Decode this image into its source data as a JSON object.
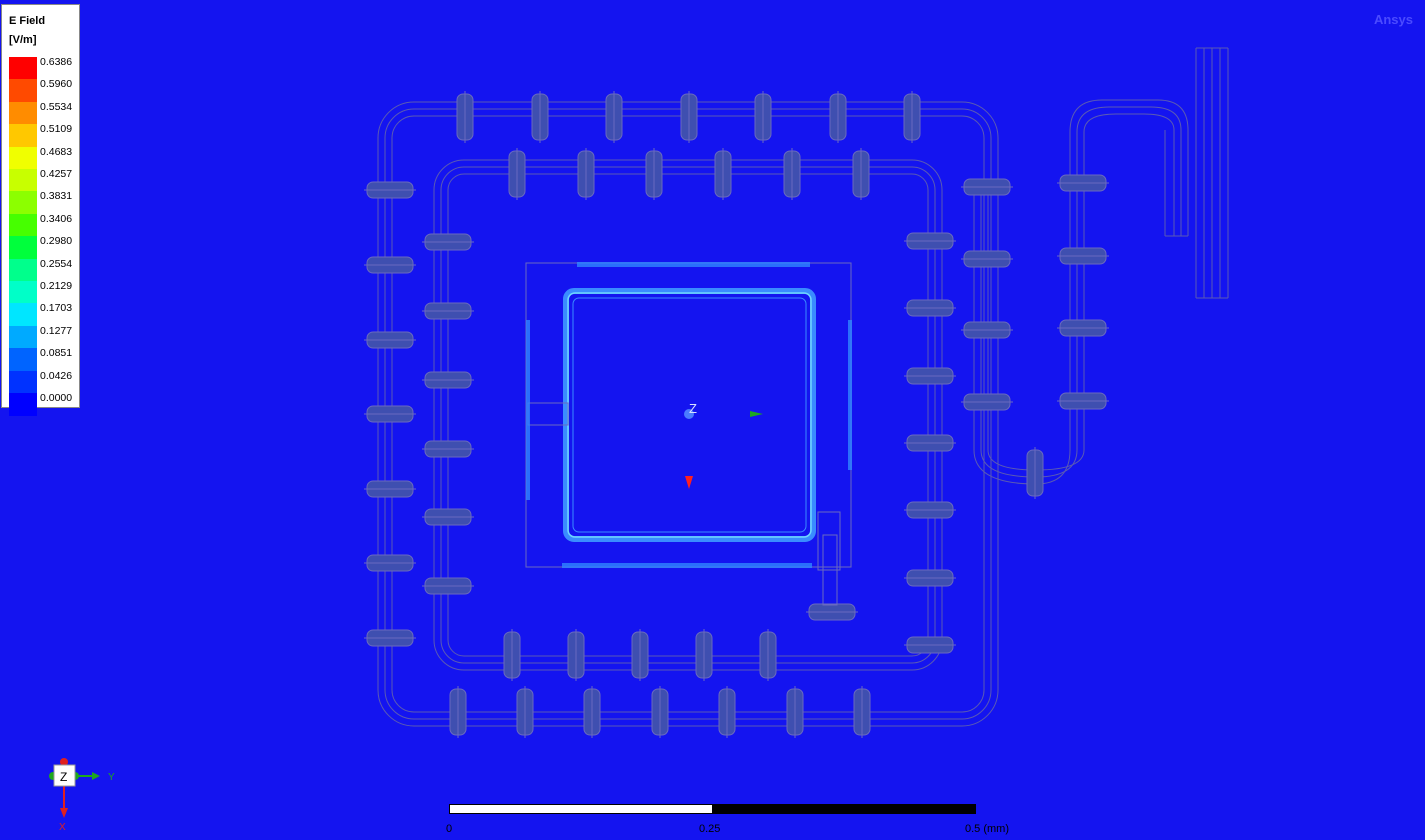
{
  "brand": "Ansys",
  "legend": {
    "title": "E Field",
    "unit": "[V/m]",
    "levels": [
      {
        "value": "0.6386",
        "color": "#ff0000"
      },
      {
        "value": "0.5960",
        "color": "#ff4a00"
      },
      {
        "value": "0.5534",
        "color": "#ff8c00"
      },
      {
        "value": "0.5109",
        "color": "#ffc800"
      },
      {
        "value": "0.4683",
        "color": "#f0ff00"
      },
      {
        "value": "0.4257",
        "color": "#c8ff00"
      },
      {
        "value": "0.3831",
        "color": "#8cff00"
      },
      {
        "value": "0.3406",
        "color": "#46ff00"
      },
      {
        "value": "0.2980",
        "color": "#00ff3c"
      },
      {
        "value": "0.2554",
        "color": "#00ff8c"
      },
      {
        "value": "0.2129",
        "color": "#00ffc8"
      },
      {
        "value": "0.1703",
        "color": "#00e6ff"
      },
      {
        "value": "0.1277",
        "color": "#00aaff"
      },
      {
        "value": "0.0851",
        "color": "#0064ff"
      },
      {
        "value": "0.0426",
        "color": "#0032ff"
      },
      {
        "value": "0.0000",
        "color": "#0000ff"
      }
    ]
  },
  "triad": {
    "z": "Z",
    "y": "Y",
    "x": "X"
  },
  "scene_axis_label": "Z",
  "scale_bar": {
    "labels": [
      "0",
      "0.25",
      "0.5 (mm)"
    ]
  },
  "colors": {
    "background": "#1414f0",
    "outline": "#5a5ab4",
    "field_glow": "#3aa0ff"
  }
}
